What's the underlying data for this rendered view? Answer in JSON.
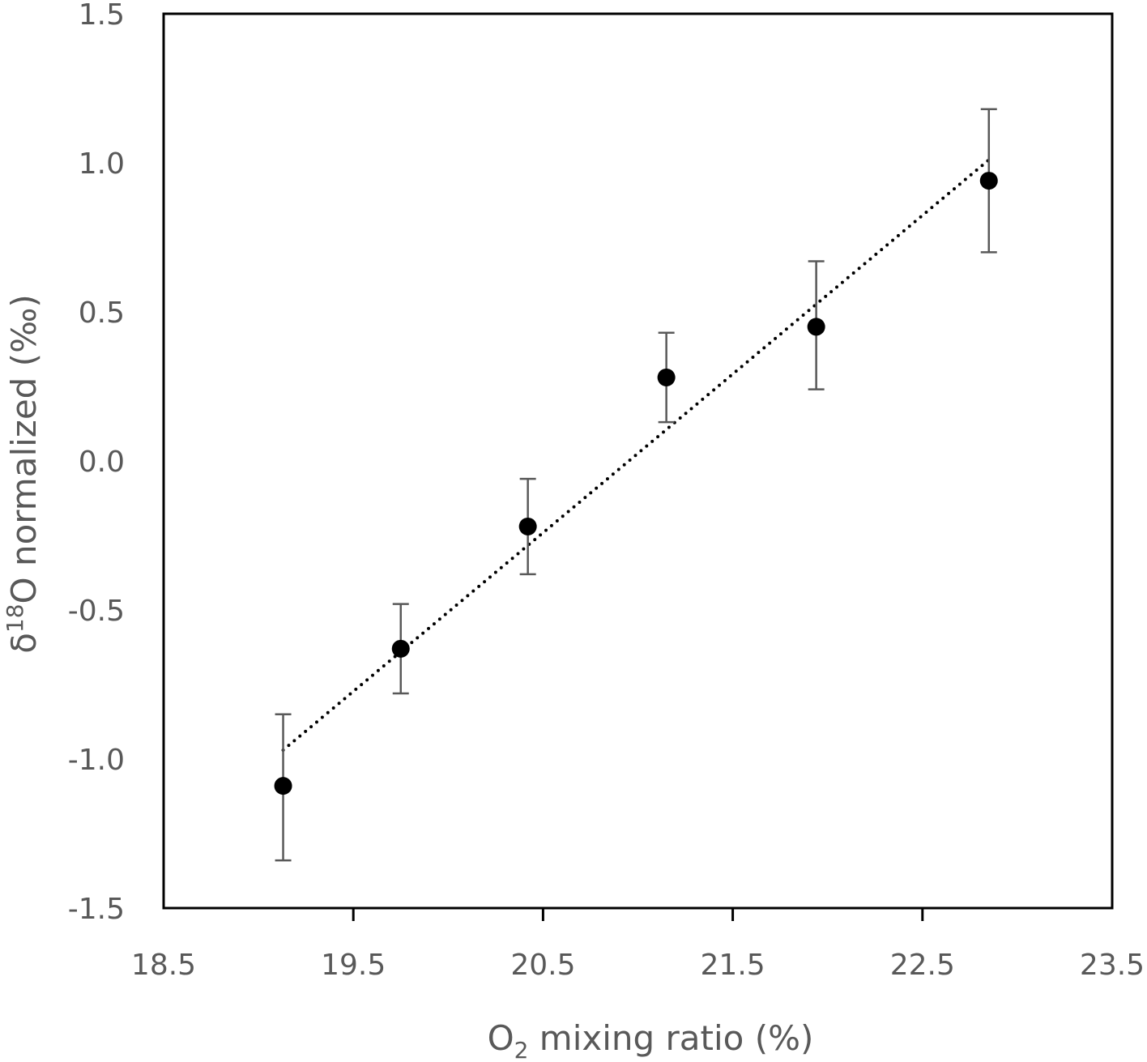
{
  "chart_data": {
    "type": "scatter",
    "x_axis": {
      "label": "O",
      "label_subscript": "2",
      "label_suffix": " mixing ratio (%)",
      "range": [
        18.5,
        23.5
      ],
      "ticks": [
        18.5,
        19.5,
        20.5,
        21.5,
        22.5,
        23.5
      ],
      "tick_labels": [
        "18.5",
        "19.5",
        "20.5",
        "21.5",
        "22.5",
        "23.5"
      ]
    },
    "y_axis": {
      "label_prefix": "δ",
      "label_superscript": "18",
      "label": "O normalized (‰)",
      "range": [
        -1.5,
        1.5
      ],
      "ticks": [
        -1.5,
        -1.0,
        -0.5,
        0.0,
        0.5,
        1.0,
        1.5
      ],
      "tick_labels": [
        "-1.5",
        "-1.0",
        "-0.5",
        "0.0",
        "0.5",
        "1.0",
        "1.5"
      ]
    },
    "series": [
      {
        "x": [
          19.13,
          19.75,
          20.42,
          21.15,
          21.94,
          22.85
        ],
        "y": [
          -1.09,
          -0.63,
          -0.22,
          0.28,
          0.45,
          0.94
        ],
        "error_low": [
          -1.34,
          -0.78,
          -0.38,
          0.13,
          0.24,
          0.7
        ],
        "error_high": [
          -0.85,
          -0.48,
          -0.06,
          0.43,
          0.67,
          1.18
        ],
        "marker": "circle",
        "color": "#000000",
        "error_bar_color": "#595959"
      }
    ],
    "trendline": {
      "style": "dotted",
      "color": "#000000",
      "x": [
        19.13,
        22.85
      ],
      "y": [
        -0.97,
        1.01
      ]
    },
    "grid": false,
    "legend": "none"
  }
}
